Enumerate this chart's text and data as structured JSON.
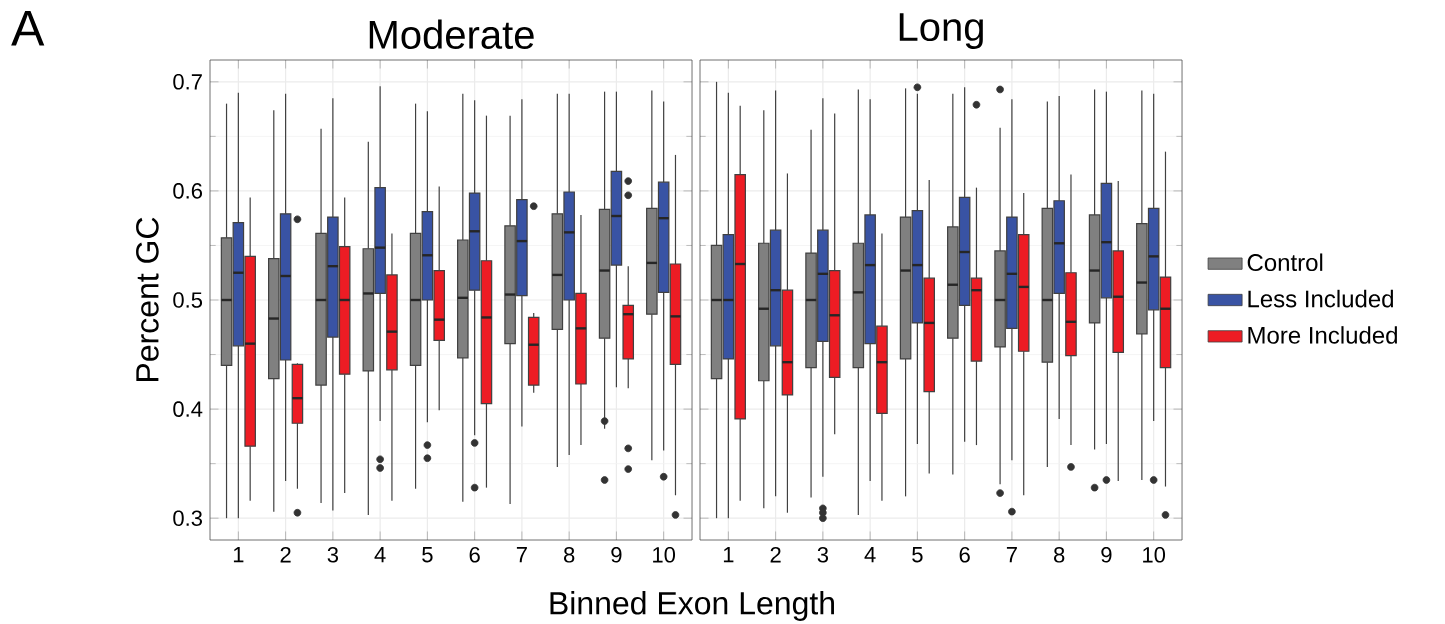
{
  "chart_data": [
    {
      "type": "box",
      "title": "Moderate",
      "xlabel": "Binned Exon Length",
      "ylabel": "Percent GC",
      "annotations": [
        "A"
      ],
      "categories": [
        "1",
        "2",
        "3",
        "4",
        "5",
        "6",
        "7",
        "8",
        "9",
        "10"
      ],
      "ylim": [
        0.28,
        0.72
      ],
      "yticks": [
        0.3,
        0.4,
        0.5,
        0.6,
        0.7
      ],
      "grid": true,
      "series": [
        {
          "color": "#808080",
          "boxes": [
            {
              "low": 0.3,
              "q1": 0.44,
              "median": 0.5,
              "q3": 0.557,
              "high": 0.68
            },
            {
              "low": 0.306,
              "q1": 0.428,
              "median": 0.483,
              "q3": 0.538,
              "high": 0.674
            },
            {
              "low": 0.314,
              "q1": 0.422,
              "median": 0.5,
              "q3": 0.561,
              "high": 0.657
            },
            {
              "low": 0.303,
              "q1": 0.435,
              "median": 0.506,
              "q3": 0.547,
              "high": 0.645
            },
            {
              "low": 0.327,
              "q1": 0.44,
              "median": 0.5,
              "q3": 0.561,
              "high": 0.68
            },
            {
              "low": 0.315,
              "q1": 0.447,
              "median": 0.502,
              "q3": 0.555,
              "high": 0.689
            },
            {
              "low": 0.313,
              "q1": 0.46,
              "median": 0.505,
              "q3": 0.568,
              "high": 0.669
            },
            {
              "low": 0.347,
              "q1": 0.473,
              "median": 0.523,
              "q3": 0.579,
              "high": 0.689
            },
            {
              "low": 0.382,
              "q1": 0.465,
              "median": 0.527,
              "q3": 0.583,
              "high": 0.691,
              "outliers": [
                0.389,
                0.335
              ]
            },
            {
              "low": 0.353,
              "q1": 0.487,
              "median": 0.534,
              "q3": 0.584,
              "high": 0.692
            }
          ]
        },
        {
          "color": "#3953a4",
          "boxes": [
            {
              "low": 0.3,
              "q1": 0.458,
              "median": 0.525,
              "q3": 0.571,
              "high": 0.69
            },
            {
              "low": 0.334,
              "q1": 0.445,
              "median": 0.522,
              "q3": 0.579,
              "high": 0.689
            },
            {
              "low": 0.307,
              "q1": 0.466,
              "median": 0.531,
              "q3": 0.576,
              "high": 0.685
            },
            {
              "low": 0.389,
              "q1": 0.506,
              "median": 0.548,
              "q3": 0.603,
              "high": 0.696,
              "outliers": [
                0.354,
                0.346
              ]
            },
            {
              "low": 0.388,
              "q1": 0.5,
              "median": 0.541,
              "q3": 0.581,
              "high": 0.673,
              "outliers": [
                0.367,
                0.355
              ]
            },
            {
              "low": 0.376,
              "q1": 0.509,
              "median": 0.563,
              "q3": 0.598,
              "high": 0.683,
              "outliers": [
                0.369,
                0.328
              ]
            },
            {
              "low": 0.384,
              "q1": 0.504,
              "median": 0.554,
              "q3": 0.592,
              "high": 0.684
            },
            {
              "low": 0.358,
              "q1": 0.5,
              "median": 0.562,
              "q3": 0.599,
              "high": 0.689
            },
            {
              "low": 0.42,
              "q1": 0.532,
              "median": 0.577,
              "q3": 0.618,
              "high": 0.691
            },
            {
              "low": 0.362,
              "q1": 0.507,
              "median": 0.575,
              "q3": 0.608,
              "high": 0.682,
              "outliers": [
                0.338
              ]
            }
          ]
        },
        {
          "color": "#ed1c24",
          "boxes": [
            {
              "low": 0.316,
              "q1": 0.366,
              "median": 0.46,
              "q3": 0.54,
              "high": 0.594
            },
            {
              "low": 0.327,
              "q1": 0.387,
              "median": 0.41,
              "q3": 0.441,
              "high": 0.442,
              "outliers": [
                0.574,
                0.305
              ]
            },
            {
              "low": 0.323,
              "q1": 0.432,
              "median": 0.5,
              "q3": 0.549,
              "high": 0.594
            },
            {
              "low": 0.316,
              "q1": 0.436,
              "median": 0.471,
              "q3": 0.523,
              "high": 0.561
            },
            {
              "low": 0.399,
              "q1": 0.463,
              "median": 0.482,
              "q3": 0.527,
              "high": 0.604
            },
            {
              "low": 0.328,
              "q1": 0.405,
              "median": 0.484,
              "q3": 0.536,
              "high": 0.669
            },
            {
              "low": 0.415,
              "q1": 0.422,
              "median": 0.459,
              "q3": 0.484,
              "high": 0.488,
              "outliers": [
                0.586
              ]
            },
            {
              "low": 0.367,
              "q1": 0.423,
              "median": 0.474,
              "q3": 0.506,
              "high": 0.578
            },
            {
              "low": 0.419,
              "q1": 0.446,
              "median": 0.487,
              "q3": 0.495,
              "high": 0.531,
              "outliers": [
                0.609,
                0.596,
                0.364,
                0.345
              ]
            },
            {
              "low": 0.321,
              "q1": 0.441,
              "median": 0.485,
              "q3": 0.533,
              "high": 0.633,
              "outliers": [
                0.303
              ]
            }
          ]
        }
      ]
    },
    {
      "type": "box",
      "title": "Long",
      "legend": "right",
      "tick_labels": "x",
      "categories": [
        "1",
        "2",
        "3",
        "4",
        "5",
        "6",
        "7",
        "8",
        "9",
        "10"
      ],
      "ylim": [
        0.28,
        0.72
      ],
      "yticks": [
        0.3,
        0.4,
        0.5,
        0.6,
        0.7
      ],
      "grid": true,
      "series": [
        {
          "name": "Control",
          "color": "#808080",
          "boxes": [
            {
              "low": 0.3,
              "q1": 0.428,
              "median": 0.5,
              "q3": 0.55,
              "high": 0.7
            },
            {
              "low": 0.309,
              "q1": 0.426,
              "median": 0.492,
              "q3": 0.552,
              "high": 0.674
            },
            {
              "low": 0.319,
              "q1": 0.438,
              "median": 0.5,
              "q3": 0.543,
              "high": 0.656
            },
            {
              "low": 0.303,
              "q1": 0.438,
              "median": 0.507,
              "q3": 0.552,
              "high": 0.693
            },
            {
              "low": 0.32,
              "q1": 0.446,
              "median": 0.527,
              "q3": 0.576,
              "high": 0.694
            },
            {
              "low": 0.34,
              "q1": 0.465,
              "median": 0.514,
              "q3": 0.567,
              "high": 0.689
            },
            {
              "low": 0.331,
              "q1": 0.457,
              "median": 0.5,
              "q3": 0.545,
              "high": 0.658,
              "outliers": [
                0.693,
                0.323
              ]
            },
            {
              "low": 0.347,
              "q1": 0.443,
              "median": 0.5,
              "q3": 0.584,
              "high": 0.682
            },
            {
              "low": 0.363,
              "q1": 0.479,
              "median": 0.527,
              "q3": 0.578,
              "high": 0.693,
              "outliers": [
                0.328
              ]
            },
            {
              "low": 0.335,
              "q1": 0.469,
              "median": 0.516,
              "q3": 0.57,
              "high": 0.692
            }
          ]
        },
        {
          "name": "Less Included",
          "color": "#3953a4",
          "boxes": [
            {
              "low": 0.3,
              "q1": 0.446,
              "median": 0.5,
              "q3": 0.56,
              "high": 0.69
            },
            {
              "low": 0.32,
              "q1": 0.458,
              "median": 0.509,
              "q3": 0.564,
              "high": 0.692
            },
            {
              "low": 0.338,
              "q1": 0.462,
              "median": 0.524,
              "q3": 0.564,
              "high": 0.685,
              "outliers": [
                0.309,
                0.305,
                0.3
              ]
            },
            {
              "low": 0.334,
              "q1": 0.46,
              "median": 0.532,
              "q3": 0.578,
              "high": 0.684
            },
            {
              "low": 0.368,
              "q1": 0.479,
              "median": 0.532,
              "q3": 0.582,
              "high": 0.689,
              "outliers": [
                0.695
              ]
            },
            {
              "low": 0.37,
              "q1": 0.495,
              "median": 0.544,
              "q3": 0.594,
              "high": 0.695
            },
            {
              "low": 0.353,
              "q1": 0.474,
              "median": 0.524,
              "q3": 0.576,
              "high": 0.684,
              "outliers": [
                0.306
              ]
            },
            {
              "low": 0.391,
              "q1": 0.506,
              "median": 0.552,
              "q3": 0.591,
              "high": 0.687
            },
            {
              "low": 0.368,
              "q1": 0.502,
              "median": 0.553,
              "q3": 0.607,
              "high": 0.691,
              "outliers": [
                0.335
              ]
            },
            {
              "low": 0.389,
              "q1": 0.491,
              "median": 0.54,
              "q3": 0.584,
              "high": 0.689,
              "outliers": [
                0.335
              ]
            }
          ]
        },
        {
          "name": "More Included",
          "color": "#ed1c24",
          "boxes": [
            {
              "low": 0.316,
              "q1": 0.391,
              "median": 0.533,
              "q3": 0.615,
              "high": 0.678
            },
            {
              "low": 0.305,
              "q1": 0.413,
              "median": 0.443,
              "q3": 0.509,
              "high": 0.616
            },
            {
              "low": 0.377,
              "q1": 0.429,
              "median": 0.486,
              "q3": 0.527,
              "high": 0.671
            },
            {
              "low": 0.316,
              "q1": 0.396,
              "median": 0.443,
              "q3": 0.476,
              "high": 0.561
            },
            {
              "low": 0.341,
              "q1": 0.416,
              "median": 0.479,
              "q3": 0.52,
              "high": 0.61
            },
            {
              "low": 0.367,
              "q1": 0.444,
              "median": 0.509,
              "q3": 0.52,
              "high": 0.603,
              "outliers": [
                0.679
              ]
            },
            {
              "low": 0.321,
              "q1": 0.453,
              "median": 0.512,
              "q3": 0.56,
              "high": 0.598
            },
            {
              "low": 0.367,
              "q1": 0.449,
              "median": 0.48,
              "q3": 0.525,
              "high": 0.615,
              "outliers": [
                0.347
              ]
            },
            {
              "low": 0.334,
              "q1": 0.452,
              "median": 0.503,
              "q3": 0.545,
              "high": 0.609
            },
            {
              "low": 0.329,
              "q1": 0.438,
              "median": 0.492,
              "q3": 0.521,
              "high": 0.636,
              "outliers": [
                0.303
              ]
            }
          ]
        }
      ]
    }
  ]
}
